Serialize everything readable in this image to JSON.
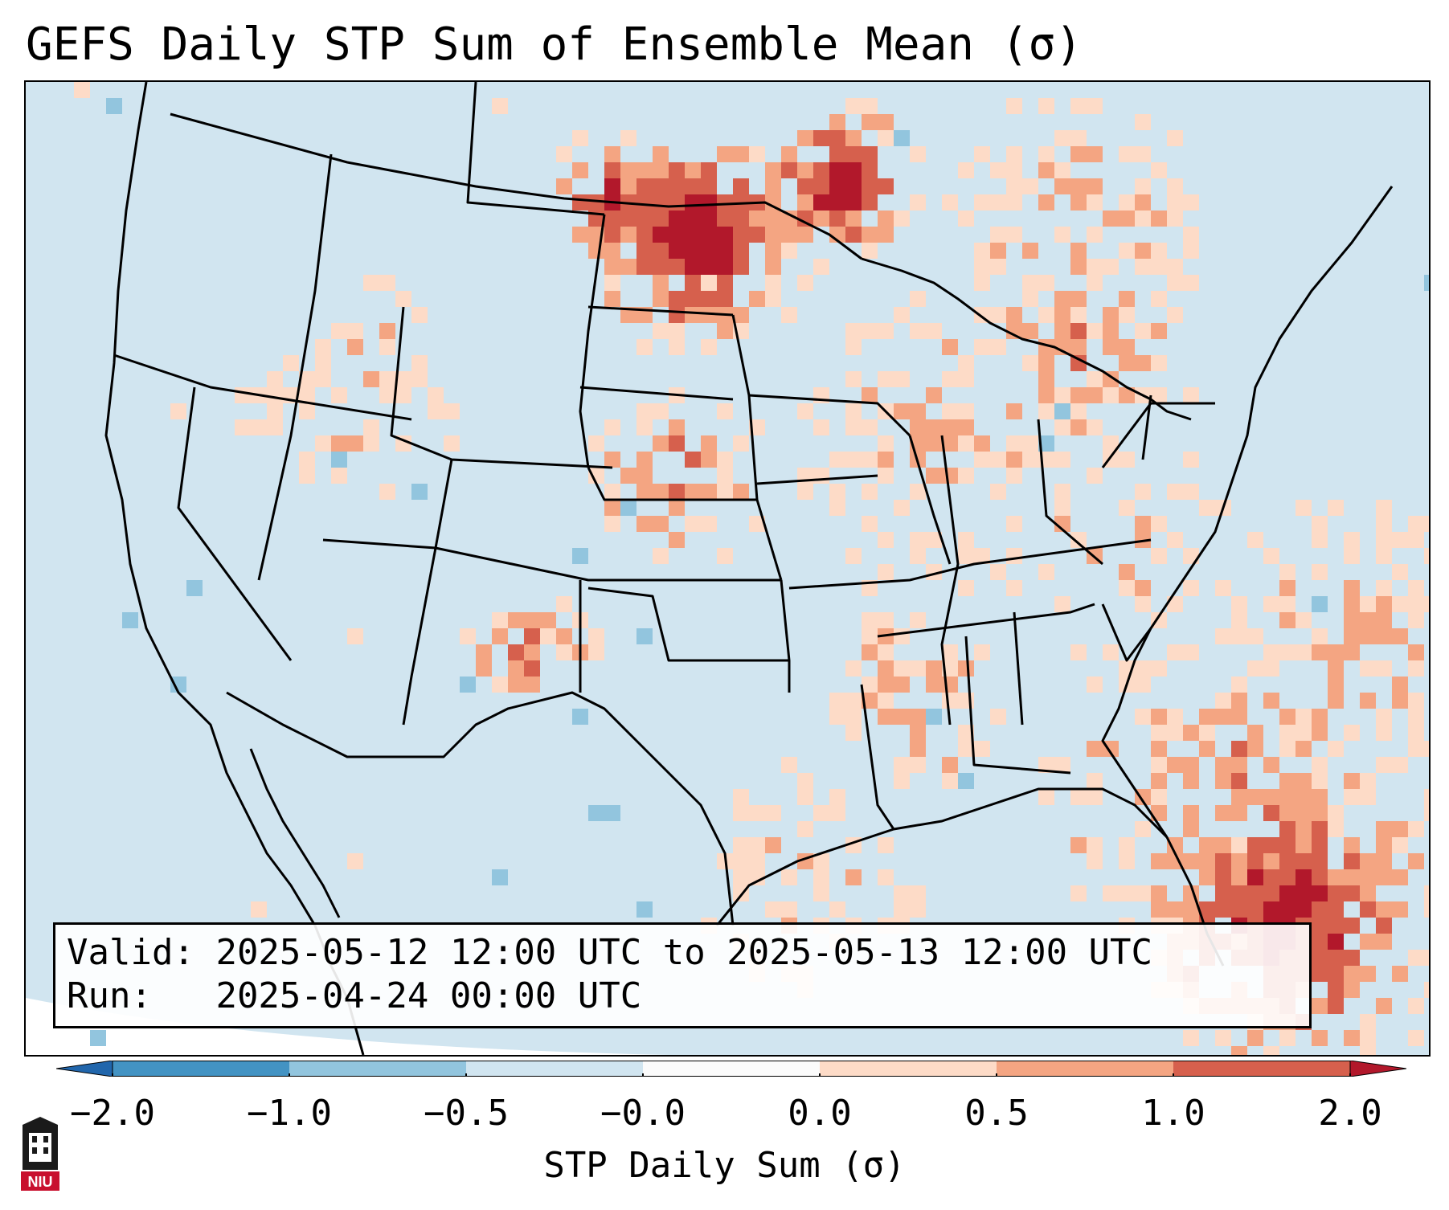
{
  "title": "GEFS Daily STP Sum of Ensemble Mean (σ)",
  "info": {
    "valid_label": "Valid:",
    "valid_value": "2025-05-12 12:00 UTC to 2025-05-13 12:00 UTC",
    "run_label": "Run:",
    "run_value": "2025-04-24 00:00 UTC"
  },
  "colorbar": {
    "label": "STP Daily Sum (σ)",
    "ticks": [
      "−2.0",
      "−1.0",
      "−0.5",
      "−0.0",
      "0.0",
      "0.5",
      "1.0",
      "2.0"
    ],
    "colors": [
      "#2166ac",
      "#4393c3",
      "#92c5de",
      "#d1e5f0",
      "#fbfbfb",
      "#fddbc7",
      "#f4a582",
      "#d6604d",
      "#b2182b"
    ]
  },
  "logo": {
    "text": "NIU"
  },
  "map": {
    "background_color": "#d1e5f0",
    "feature_color": "#000000",
    "features": [
      "coastlines",
      "country-borders",
      "state-borders"
    ],
    "region": "CONUS"
  }
}
